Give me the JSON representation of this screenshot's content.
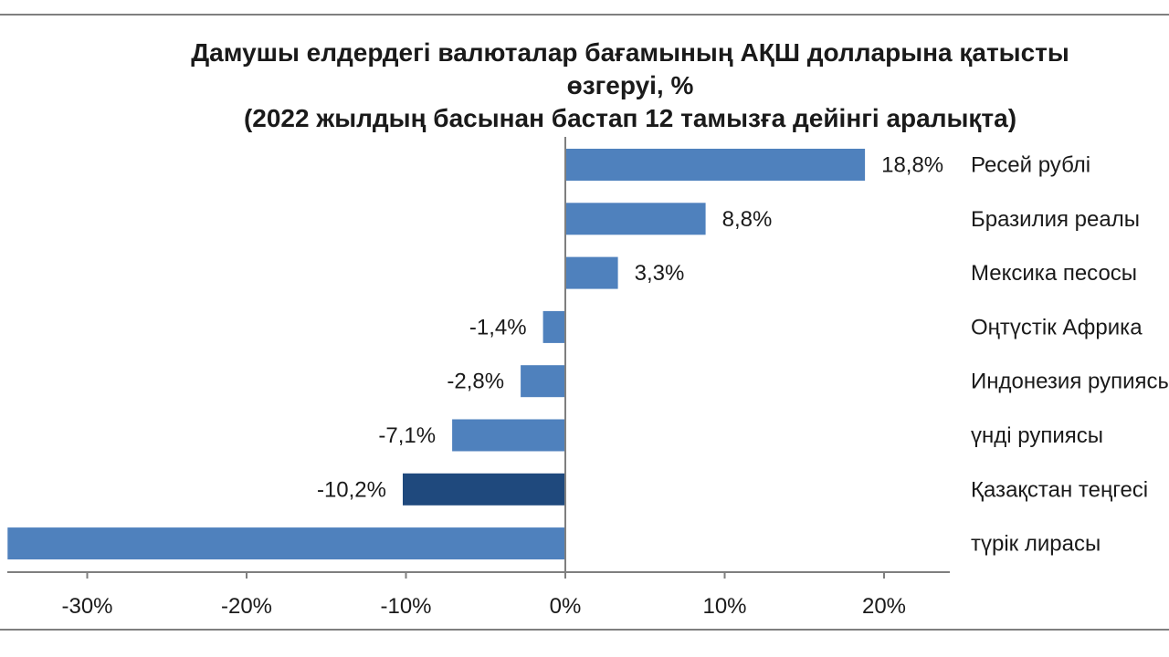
{
  "chart_data": {
    "type": "bar",
    "orientation": "horizontal",
    "title_lines": [
      "Дамушы елдердегі валюталар бағамының АҚШ долларына қатысты",
      "өзгеруі, %",
      "(2022 жылдың басынан бастап 12 тамызға дейінгі аралықта)"
    ],
    "categories": [
      "Ресей рублі",
      "Бразилия реалы",
      "Мексика песосы",
      "Оңтүстік Африка",
      "Индонезия рупиясы",
      "үнді рупиясы",
      "Қазақстан теңгесі",
      "түрік лирасы"
    ],
    "values": [
      18.8,
      8.8,
      3.3,
      -1.4,
      -2.8,
      -7.1,
      -10.2,
      -35
    ],
    "value_labels": [
      "18,8%",
      "8,8%",
      "3,3%",
      "-1,4%",
      "-2,8%",
      "-7,1%",
      "-10,2%",
      ""
    ],
    "highlight_index": 6,
    "colors": {
      "bar": "#4f81bd",
      "highlight": "#1f497d",
      "axis": "#7f7f7f"
    },
    "xlim": [
      -35,
      24
    ],
    "xticks": [
      -30,
      -20,
      -10,
      0,
      10,
      20
    ],
    "xtick_labels": [
      "-30%",
      "-20%",
      "-10%",
      "0%",
      "10%",
      "20%"
    ],
    "grid": false,
    "legend": "none"
  }
}
